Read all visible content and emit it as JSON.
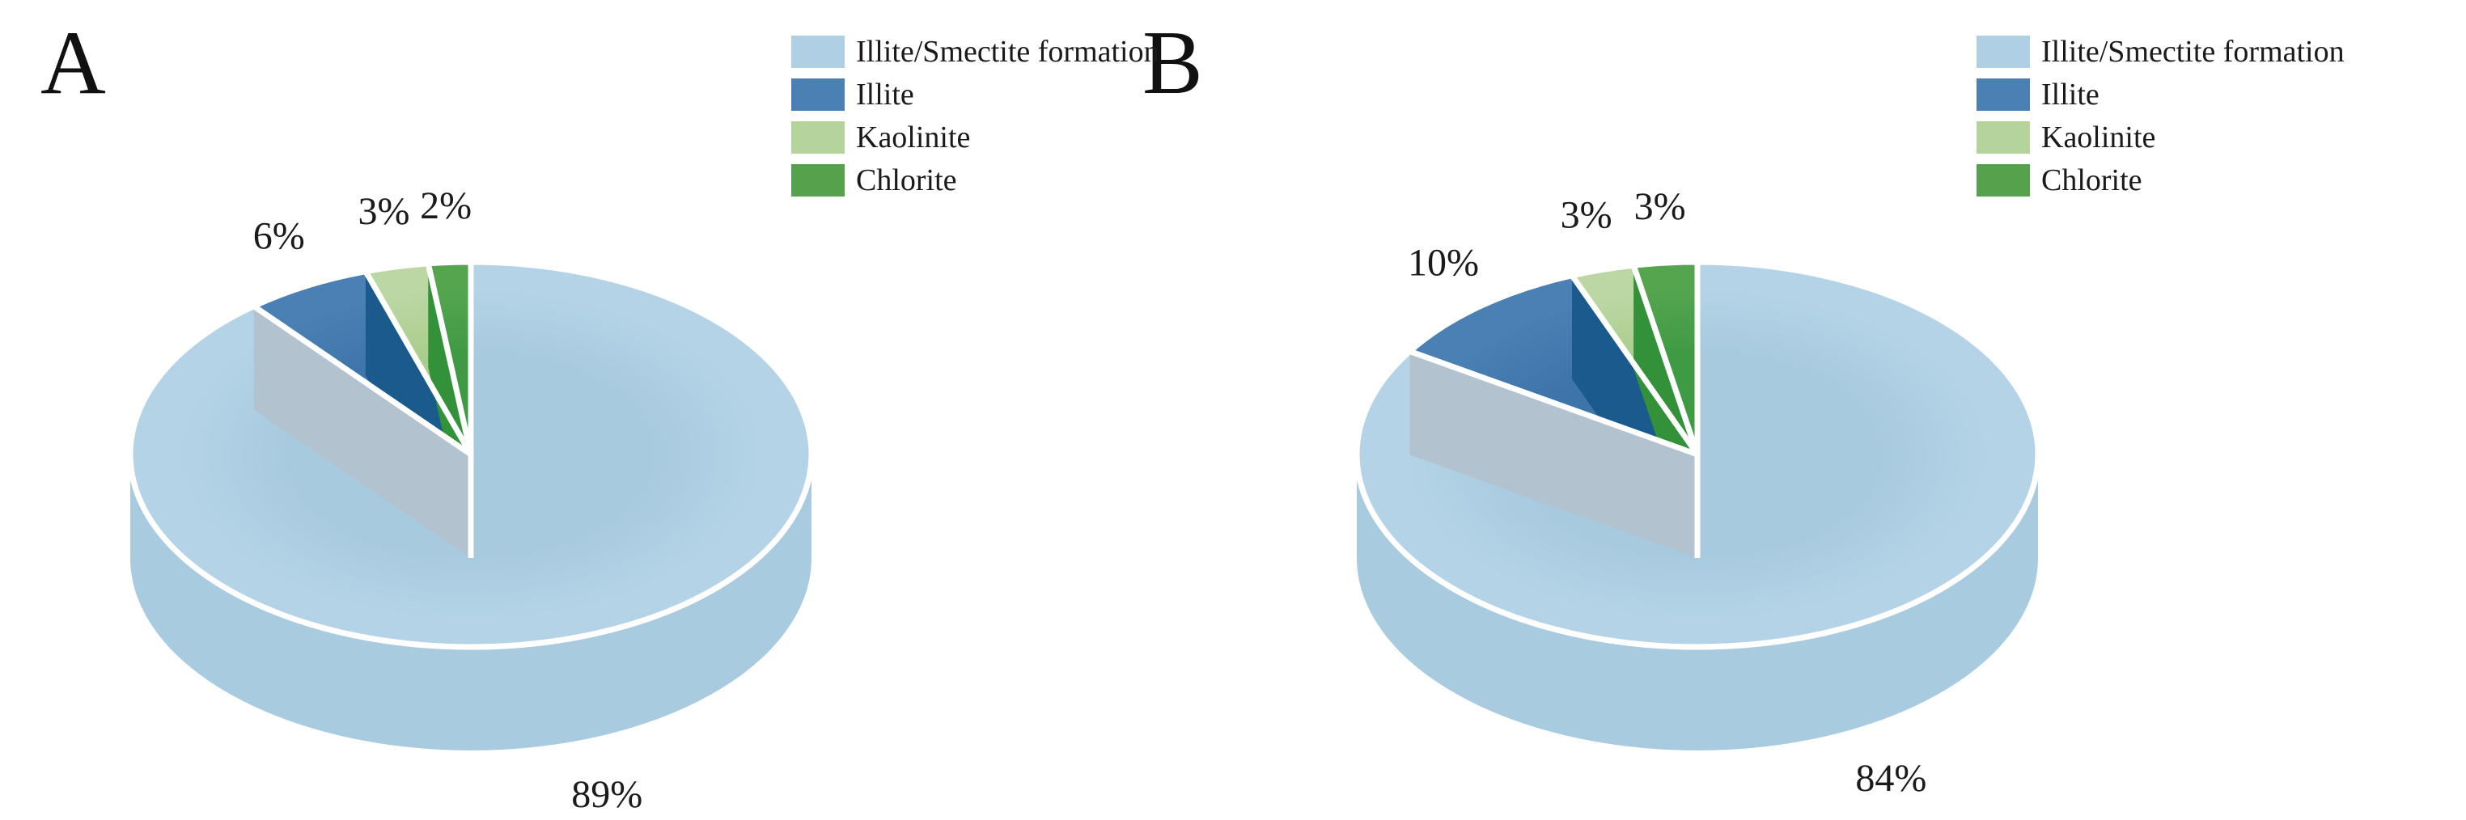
{
  "figure": {
    "background": "#ffffff",
    "text_color": "#1a1a1a",
    "panels": [
      {
        "label": "A",
        "legend": [
          {
            "name": "Illite/Smectite formation",
            "color": "#aecfe4"
          },
          {
            "name": "Illite",
            "color": "#4a80b4"
          },
          {
            "name": "Kaolinite",
            "color": "#b5d49c"
          },
          {
            "name": "Chlorite",
            "color": "#55a24c"
          }
        ]
      },
      {
        "label": "B",
        "legend": [
          {
            "name": "Illite/Smectite formation",
            "color": "#aecfe4"
          },
          {
            "name": "Illite",
            "color": "#4a80b4"
          },
          {
            "name": "Kaolinite",
            "color": "#b5d49c"
          },
          {
            "name": "Chlorite",
            "color": "#55a24c"
          }
        ]
      }
    ]
  },
  "palette": {
    "slice_top_outer": [
      "#b4d3e7",
      "#4a80b4",
      "#bcd7a4",
      "#55a54f"
    ],
    "slice_top_inner": [
      "#a8cade",
      "#3d75aa",
      "#a9cd8b",
      "#3f9a44"
    ],
    "side_band": "#a9cbdf",
    "cut_face_gray": "#b2c2cf",
    "cut_face_dark_blue": "#1a5a8d",
    "cut_face_dark_green": "#33913a",
    "separator": "#ffffff"
  },
  "chart_data": [
    {
      "type": "pie",
      "variant": "3d",
      "panel": "A",
      "categories": [
        "Illite/Smectite formation",
        "Illite",
        "Kaolinite",
        "Chlorite"
      ],
      "values": [
        89,
        6,
        3,
        2
      ],
      "labels": [
        "89%",
        "6%",
        "3%",
        "2%"
      ],
      "start_angle": "12-oclock",
      "direction": "clockwise",
      "legend_position": "top-right"
    },
    {
      "type": "pie",
      "variant": "3d",
      "panel": "B",
      "categories": [
        "Illite/Smectite formation",
        "Illite",
        "Kaolinite",
        "Chlorite"
      ],
      "values": [
        84,
        10,
        3,
        3
      ],
      "labels": [
        "84%",
        "10%",
        "3%",
        "3%"
      ],
      "start_angle": "12-oclock",
      "direction": "clockwise",
      "legend_position": "top-right"
    }
  ]
}
